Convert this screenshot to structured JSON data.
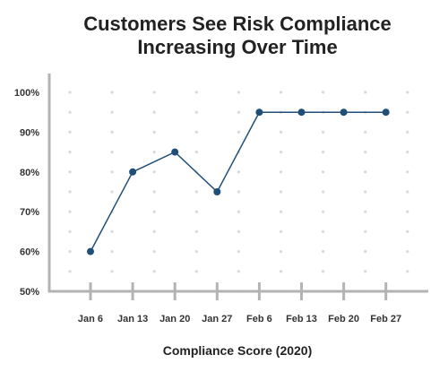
{
  "colors": {
    "line": "#1f4e79",
    "marker": "#1f4e79",
    "axis": "#b3b3b3",
    "grid_dot": "#d9d9d9",
    "text": "#222222"
  },
  "chart_data": {
    "type": "line",
    "title_lines": [
      "Customers See Risk Compliance",
      "Increasing Over Time"
    ],
    "xlabel": "Compliance Score (2020)",
    "ylabel": "",
    "categories": [
      "Jan 6",
      "Jan 13",
      "Jan 20",
      "Jan 27",
      "Feb 6",
      "Feb 13",
      "Feb 20",
      "Feb 27"
    ],
    "series": [
      {
        "values": [
          60,
          80,
          85,
          75,
          95,
          95,
          95,
          95
        ]
      }
    ],
    "ylim": [
      50,
      100
    ],
    "yticks": [
      {
        "value": 100,
        "label": "100%"
      },
      {
        "value": 90,
        "label": "90%"
      },
      {
        "value": 80,
        "label": "80%"
      },
      {
        "value": 70,
        "label": "70%"
      },
      {
        "value": 60,
        "label": "60%"
      },
      {
        "value": 50,
        "label": "50%"
      }
    ],
    "grid": "dotted",
    "legend": "none"
  }
}
